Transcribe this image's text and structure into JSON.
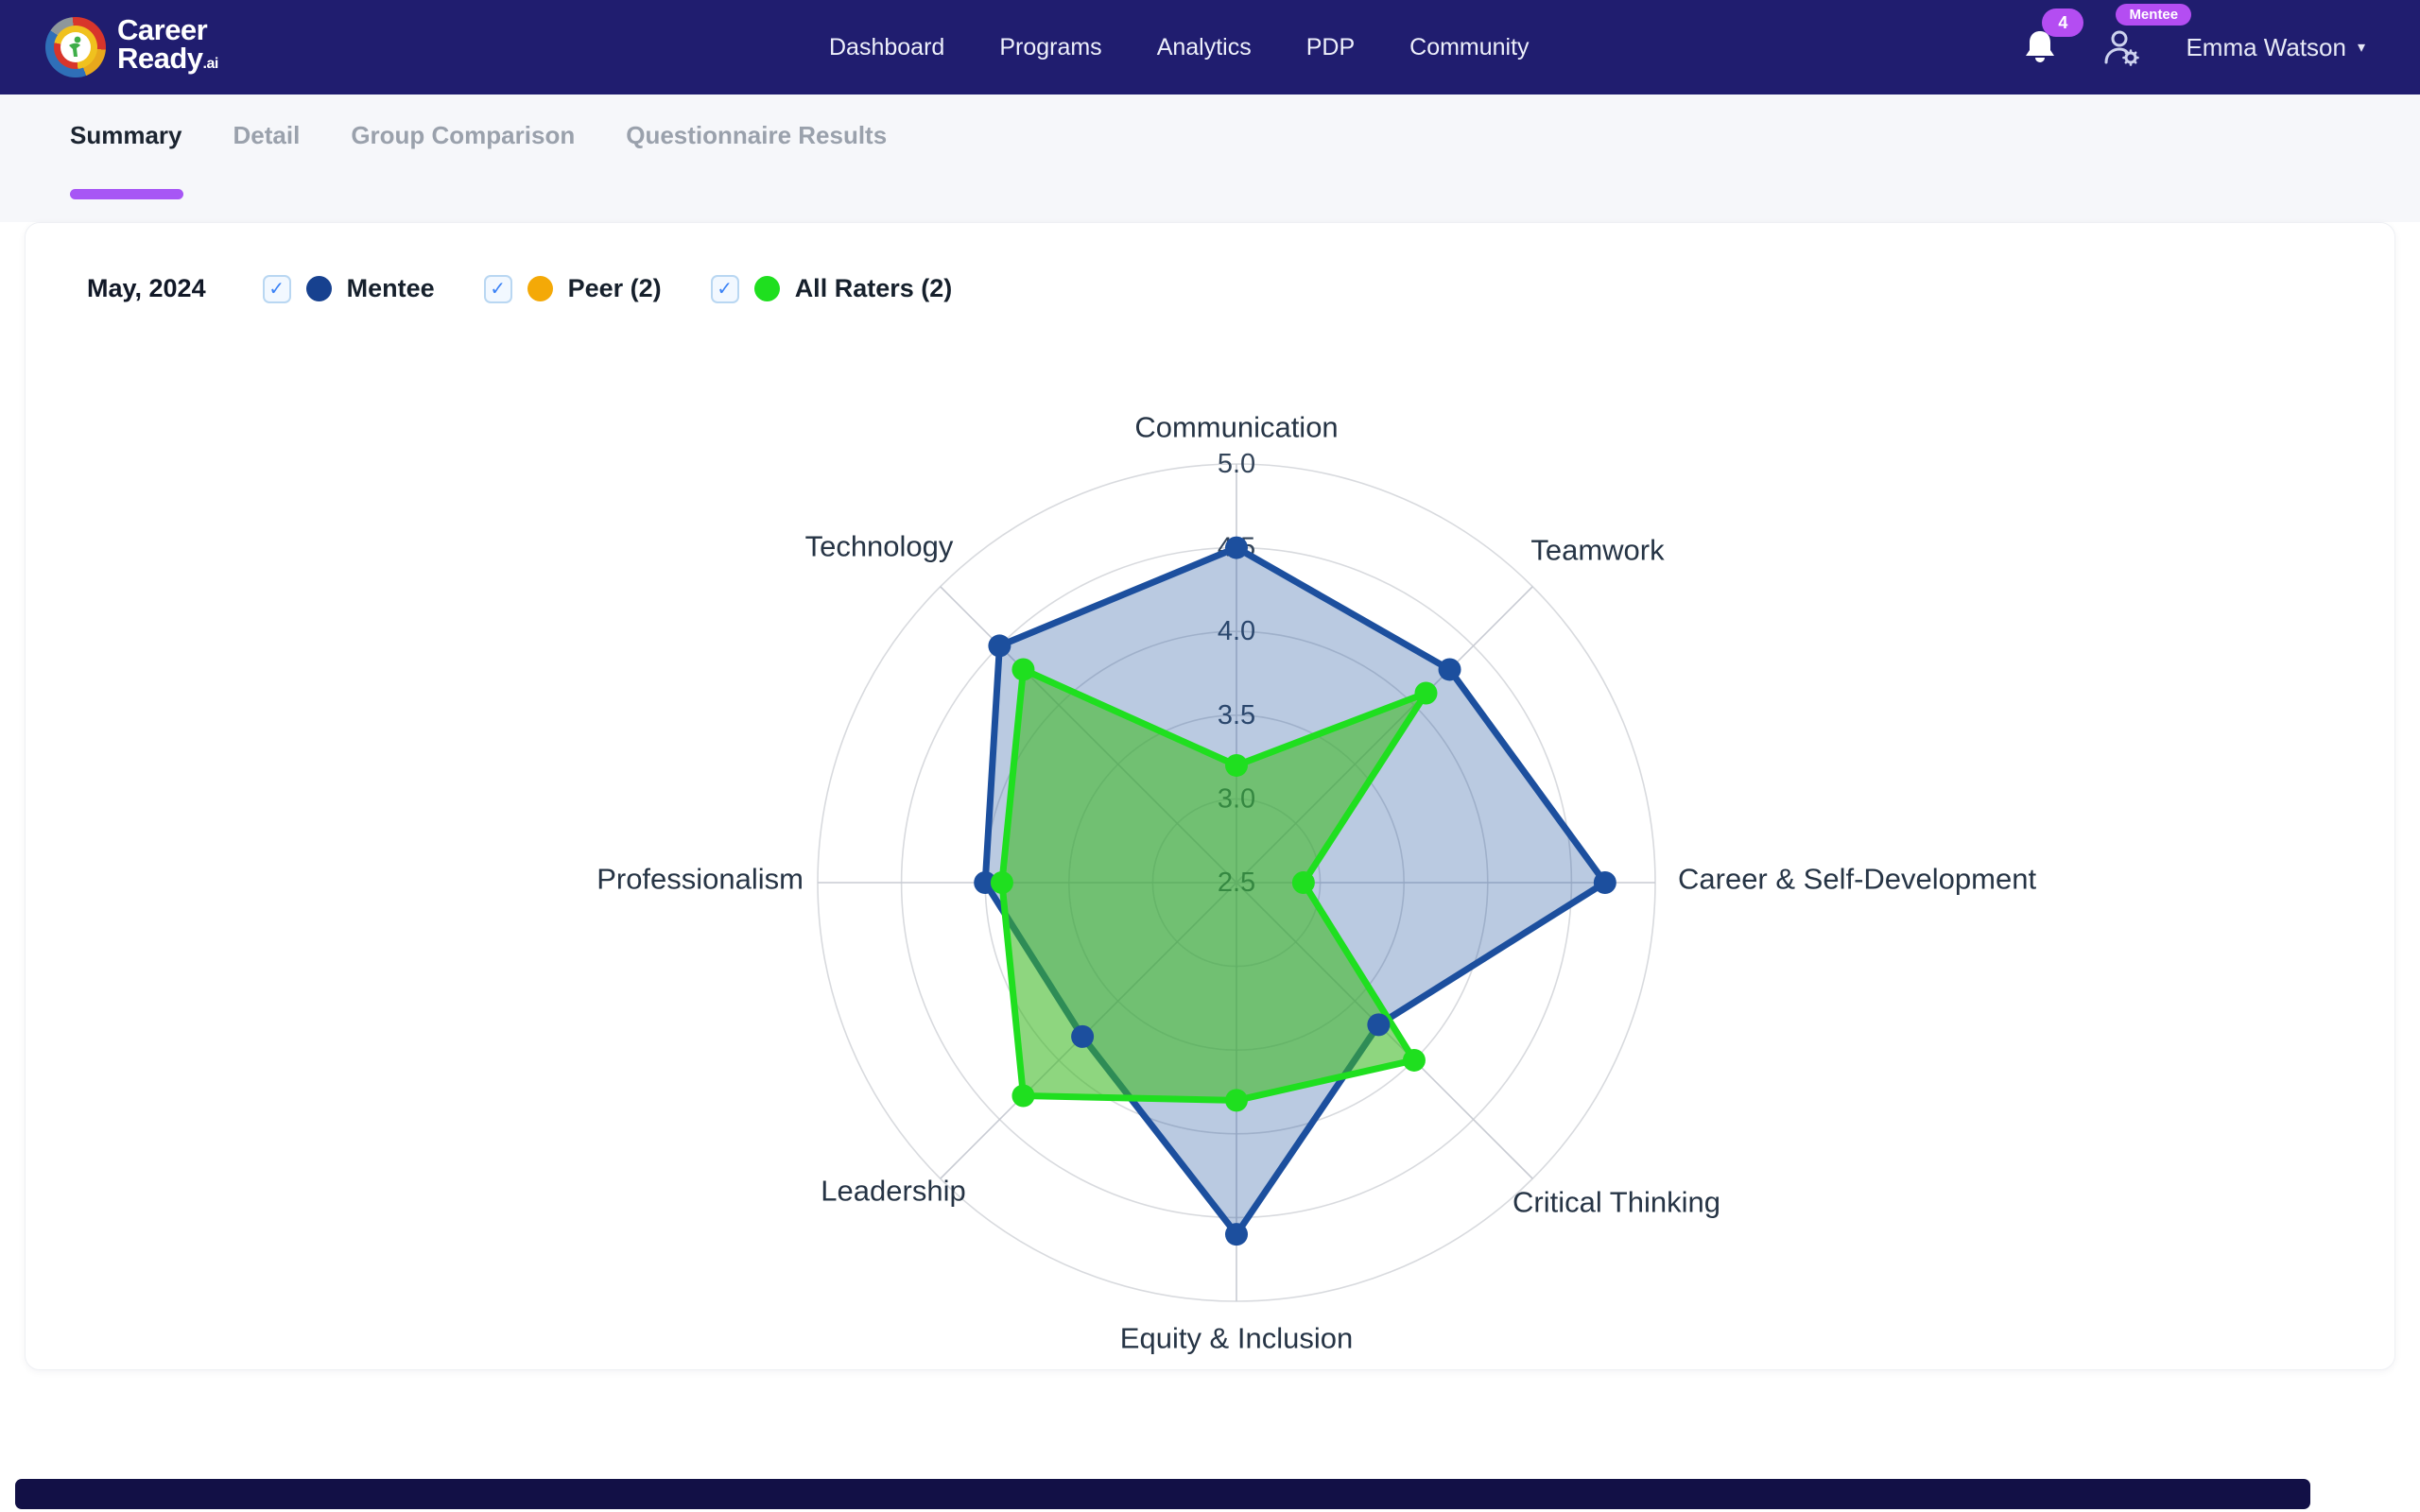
{
  "brand": {
    "line1": "Career",
    "line2": "Ready",
    "suffix": ".ai"
  },
  "nav": {
    "items": [
      "Dashboard",
      "Programs",
      "Analytics",
      "PDP",
      "Community"
    ]
  },
  "user": {
    "name": "Emma Watson",
    "role_badge": "Mentee",
    "notification_count": "4"
  },
  "tabs": {
    "items": [
      {
        "label": "Summary",
        "active": true
      },
      {
        "label": "Detail",
        "active": false
      },
      {
        "label": "Group Comparison",
        "active": false
      },
      {
        "label": "Questionnaire Results",
        "active": false
      }
    ]
  },
  "filters": {
    "period": "May, 2024",
    "series": [
      {
        "label": "Mentee",
        "color": "#17418f",
        "checked": true
      },
      {
        "label": "Peer (2)",
        "color": "#f4a907",
        "checked": true
      },
      {
        "label": "All Raters (2)",
        "color": "#1fdf1f",
        "checked": true
      }
    ]
  },
  "chart_data": {
    "type": "radar",
    "categories": [
      "Communication",
      "Teamwork",
      "Career & Self-Development",
      "Critical Thinking",
      "Equity & Inclusion",
      "Leadership",
      "Professionalism",
      "Technology"
    ],
    "series": [
      {
        "name": "Mentee",
        "color": "#1c4f9e",
        "fill": "rgba(27,78,155,0.30)",
        "values": [
          4.5,
          4.3,
          4.7,
          3.7,
          4.6,
          3.8,
          4.0,
          4.5
        ]
      },
      {
        "name": "All Raters (2)",
        "color": "#1fdf1f",
        "fill": "rgba(60,185,35,0.58)",
        "values": [
          3.2,
          4.1,
          2.9,
          4.0,
          3.8,
          4.3,
          3.9,
          4.3
        ]
      }
    ],
    "scale": {
      "min": 2.5,
      "max": 5.0,
      "step": 0.5,
      "tick_values": [
        5.0,
        4.5,
        4.0,
        3.5,
        3.0,
        2.5
      ],
      "tick_labels": [
        "5.0",
        "4.5",
        "4.0",
        "3.5",
        "3.0",
        "2.5"
      ]
    },
    "grid": true,
    "legend_position": "top-left"
  },
  "colors": {
    "navbar": "#201d6f",
    "accent_purple": "#a756f5",
    "badge_purple": "#b44df2",
    "page_band": "#f6f7fa",
    "bottom_bar": "#121046"
  }
}
